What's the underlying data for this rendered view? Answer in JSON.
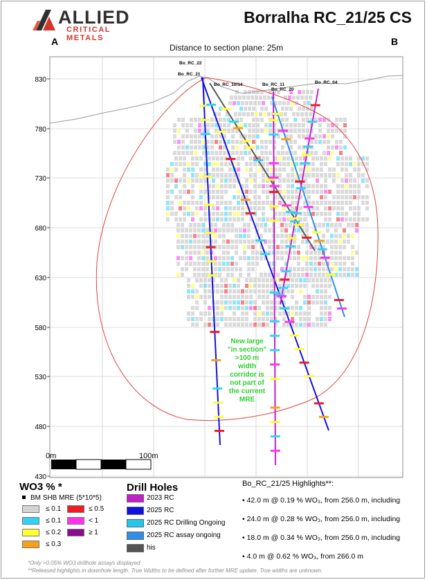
{
  "logo": {
    "main": "ALLIED",
    "sub": "CRITICAL METALS"
  },
  "title": "Borralha RC_21/25 CS",
  "label_a": "A",
  "label_b": "B",
  "distance": "Distance to section plane: 25m",
  "y_axis": {
    "ticks": [
      "830",
      "780",
      "730",
      "680",
      "630",
      "580",
      "530",
      "480",
      "430"
    ]
  },
  "scale_bar": {
    "start": "0m",
    "end": "100m"
  },
  "hole_labels": [
    "Bo_RC_22",
    "Bo_RC_21",
    "Bo_RC_10/14",
    "Bo_RC_11",
    "Bo_RC_20",
    "Bo_RC_04"
  ],
  "annotation": [
    "New large",
    "\"in section\"",
    ">100 m",
    "width",
    "corridor is",
    "not part of",
    "the current",
    "MRE"
  ],
  "legend": {
    "title": "WO3 % *",
    "bm_label": "BM SHB MRE (5*10*5)",
    "items": [
      {
        "label": "≤ 0.1",
        "color": "#d4d4d4"
      },
      {
        "label": "≤ 0.1",
        "color": "#2fd4f5"
      },
      {
        "label": "≤ 0.2",
        "color": "#ffff33"
      },
      {
        "label": "≤ 0.3",
        "color": "#f7a11a"
      },
      {
        "label": "≤ 0.5",
        "color": "#ee1c25"
      },
      {
        "label": "< 1",
        "color": "#ff33ee"
      },
      {
        "label": "≥ 1",
        "color": "#8b0a8f"
      }
    ]
  },
  "drill_holes": {
    "title": "Drill Holes",
    "items": [
      {
        "label": "2023 RC",
        "color": "#c21fc9"
      },
      {
        "label": "2025 RC",
        "color": "#1010e0"
      },
      {
        "label": "2025 RC Drilling Ongoing",
        "color": "#1fc7e8"
      },
      {
        "label": "2025 RC assay ongoing",
        "color": "#2f8fe8"
      },
      {
        "label": "his",
        "color": "#555555"
      }
    ]
  },
  "highlights": {
    "title": "Bo_RC_21/25 Highlights**:",
    "items": [
      "• 42.0 m @ 0.19 % WO₃, from 256.0 m, including",
      "• 24.0 m @ 0.28 % WO₃, from 256.0 m, including",
      "• 18.0 m @ 0.34 % WO₃, from 256.0 m, including",
      "• 4.0 m @ 0.62 % WO₃, from 266.0 m"
    ]
  },
  "footnotes": [
    "*Only >0.05% WO3 drillhole assays displayed",
    "**Released highlights in downhole length. True Widths to be defined after further MRE update. True widths are unknown."
  ]
}
